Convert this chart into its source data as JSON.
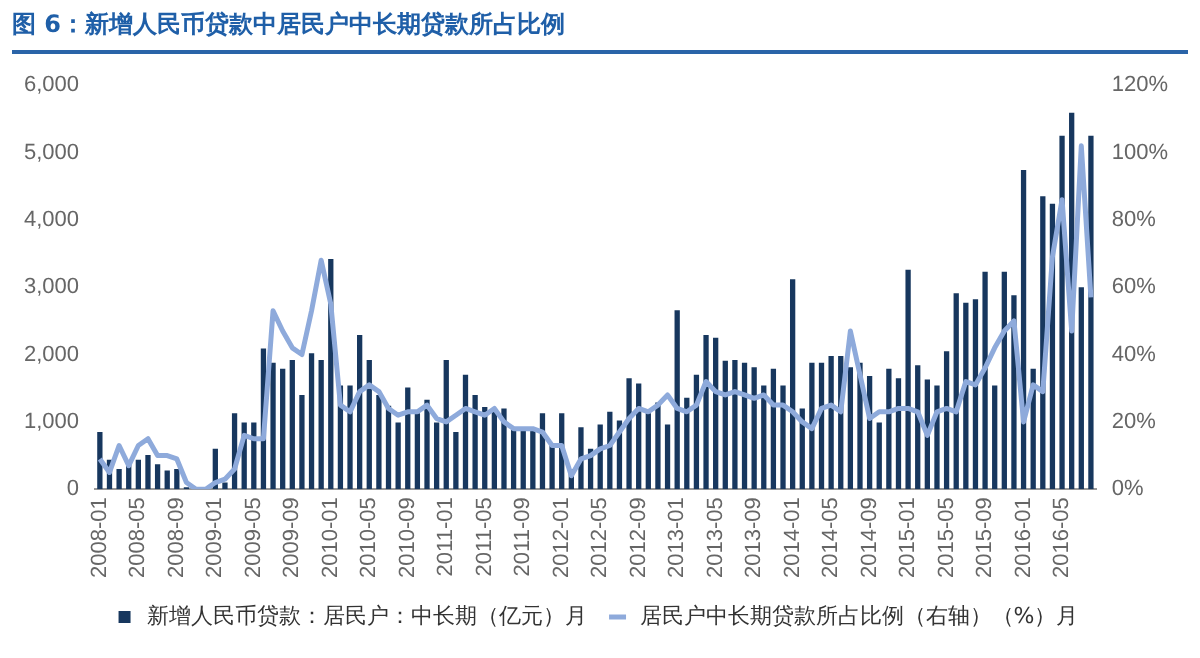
{
  "chart_data": {
    "type": "bar",
    "title": "图 6：新增人民币贷款中居民户中长期贷款所占比例",
    "categories": [
      "2008-01",
      null,
      null,
      null,
      "2008-05",
      null,
      null,
      null,
      "2008-09",
      null,
      null,
      null,
      "2009-01",
      null,
      null,
      null,
      "2009-05",
      null,
      null,
      null,
      "2009-09",
      null,
      null,
      null,
      "2010-01",
      null,
      null,
      null,
      "2010-05",
      null,
      null,
      null,
      "2010-09",
      null,
      null,
      null,
      "2011-01",
      null,
      null,
      null,
      "2011-05",
      null,
      null,
      null,
      "2011-09",
      null,
      null,
      null,
      "2012-01",
      null,
      null,
      null,
      "2012-05",
      null,
      null,
      null,
      "2012-09",
      null,
      null,
      null,
      "2013-01",
      null,
      null,
      null,
      "2013-05",
      null,
      null,
      null,
      "2013-09",
      null,
      null,
      null,
      "2014-01",
      null,
      null,
      null,
      "2014-05",
      null,
      null,
      null,
      "2014-09",
      null,
      null,
      null,
      "2015-01",
      null,
      null,
      null,
      "2015-05",
      null,
      null,
      null,
      "2015-09",
      null,
      null,
      null,
      "2016-01",
      null,
      null,
      null,
      "2016-05",
      null,
      null,
      null
    ],
    "series": [
      {
        "name": "新增人民币贷款：居民户：中长期（亿元）月",
        "color": "#17375e",
        "values": [
          850,
          440,
          300,
          370,
          440,
          510,
          370,
          280,
          300,
          30,
          null,
          null,
          600,
          100,
          1130,
          990,
          990,
          2090,
          1880,
          1790,
          1920,
          1400,
          2020,
          1920,
          3420,
          1540,
          1540,
          2290,
          1920,
          1400,
          1240,
          990,
          1510,
          1130,
          1330,
          990,
          1920,
          850,
          1700,
          1400,
          1220,
          1150,
          1200,
          880,
          880,
          880,
          1130,
          650,
          1130,
          300,
          920,
          600,
          960,
          1150,
          1020,
          1650,
          1570,
          1130,
          1290,
          960,
          2660,
          1360,
          1700,
          2290,
          2250,
          1910,
          1920,
          1880,
          1810,
          1540,
          1790,
          1540,
          3120,
          1200,
          1880,
          1880,
          1980,
          1980,
          1810,
          1880,
          1680,
          990,
          1790,
          1650,
          3260,
          1840,
          1630,
          1540,
          2050,
          2910,
          2770,
          2820,
          3230,
          1540,
          3230,
          2880,
          4740,
          1790,
          4350,
          4240,
          5250,
          5590,
          3000,
          5250
        ]
      },
      {
        "name": "居民户中长期贷款所占比例（右轴）（%）月",
        "type": "line",
        "axis": "y2",
        "color": "#8eaadb",
        "values": [
          9,
          5,
          13,
          7,
          13,
          15,
          10,
          10,
          9,
          2,
          0,
          0,
          2,
          3,
          6,
          16,
          15,
          15,
          53,
          47,
          42,
          40,
          53,
          68,
          55,
          25,
          23,
          29,
          31,
          29,
          24,
          22,
          23,
          23,
          25,
          21,
          20,
          22,
          24,
          23,
          22,
          24,
          20,
          18,
          18,
          18,
          17,
          13,
          13,
          4,
          9,
          10,
          12,
          13,
          17,
          21,
          24,
          23,
          25,
          28,
          24,
          23,
          25,
          32,
          29,
          28,
          29,
          28,
          27,
          28,
          25,
          25,
          23,
          20,
          18,
          24,
          25,
          23,
          47,
          34,
          21,
          23,
          23,
          24,
          24,
          23,
          16,
          23,
          24,
          23,
          32,
          31,
          36,
          42,
          47,
          50,
          20,
          31,
          29,
          69,
          86,
          47,
          102,
          57
        ]
      }
    ],
    "ylim": [
      0,
      6000
    ],
    "yticks": [
      0,
      {
        "value": 1000,
        "label": "1,000"
      },
      {
        "value": 2000,
        "label": "2,000"
      },
      {
        "value": 3000,
        "label": "3,000"
      },
      {
        "value": 4000,
        "label": "4,000"
      },
      {
        "value": 5000,
        "label": "5,000"
      },
      {
        "value": 6000,
        "label": "6,000"
      }
    ],
    "y2lim": [
      0,
      120
    ],
    "y2ticks": [
      {
        "value": 0,
        "label": "0%"
      },
      {
        "value": 20,
        "label": "20%"
      },
      {
        "value": 40,
        "label": "40%"
      },
      {
        "value": 60,
        "label": "60%"
      },
      {
        "value": 80,
        "label": "80%"
      },
      {
        "value": 100,
        "label": "100%"
      },
      {
        "value": 120,
        "label": "120%"
      }
    ],
    "grid": false,
    "legend": "bottom",
    "marker": "none",
    "line_style": "solid"
  }
}
